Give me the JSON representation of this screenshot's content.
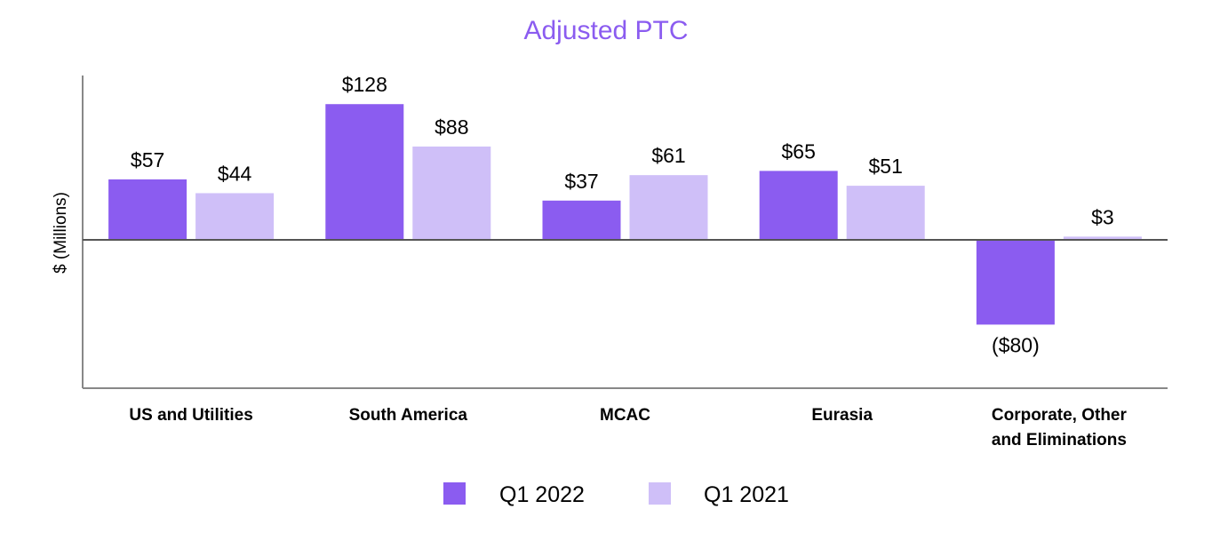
{
  "chart_data": {
    "type": "bar",
    "title": "Adjusted PTC",
    "ylabel": "$ (Millions)",
    "xlabel": "",
    "ylim": [
      -140,
      155
    ],
    "grid": false,
    "legend_position": "bottom",
    "categories": [
      [
        "US and Utilities"
      ],
      [
        "South America"
      ],
      [
        "MCAC"
      ],
      [
        "Eurasia"
      ],
      [
        "Corporate, Other",
        "and Eliminations"
      ]
    ],
    "series": [
      {
        "name": "Q1 2022",
        "color": "#8b5cf0",
        "values": [
          57,
          128,
          37,
          65,
          -80
        ],
        "labels": [
          "$57",
          "$128",
          "$37",
          "$65",
          "($80)"
        ]
      },
      {
        "name": "Q1 2021",
        "color": "#cfbff8",
        "values": [
          44,
          88,
          61,
          51,
          3
        ],
        "labels": [
          "$44",
          "$88",
          "$61",
          "$51",
          "$3"
        ]
      }
    ],
    "colors": {
      "title": "#8b5cf0",
      "axis": "#888888",
      "zero_line": "#555555"
    }
  }
}
